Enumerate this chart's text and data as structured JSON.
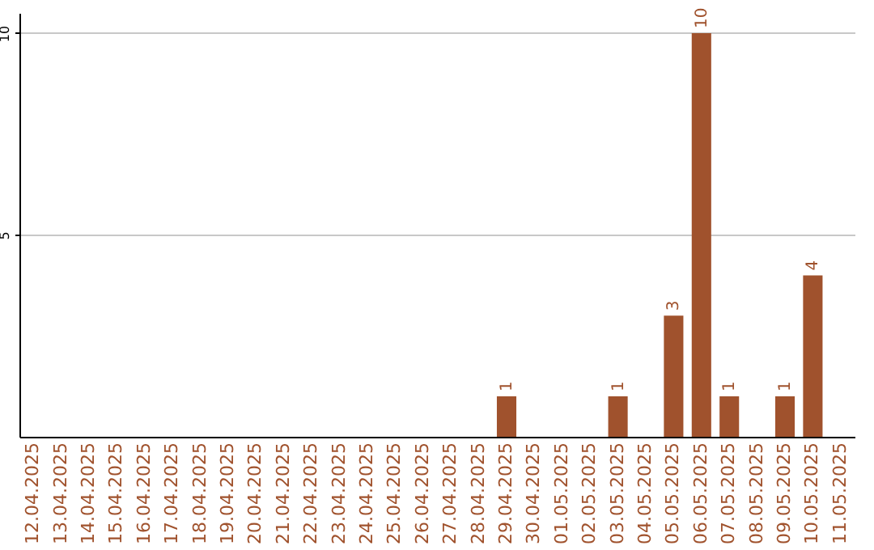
{
  "chart_data": {
    "type": "bar",
    "categories": [
      "12.04.2025",
      "13.04.2025",
      "14.04.2025",
      "15.04.2025",
      "16.04.2025",
      "17.04.2025",
      "18.04.2025",
      "19.04.2025",
      "20.04.2025",
      "21.04.2025",
      "22.04.2025",
      "23.04.2025",
      "24.04.2025",
      "25.04.2025",
      "26.04.2025",
      "27.04.2025",
      "28.04.2025",
      "29.04.2025",
      "30.04.2025",
      "01.05.2025",
      "02.05.2025",
      "03.05.2025",
      "04.05.2025",
      "05.05.2025",
      "06.05.2025",
      "07.05.2025",
      "08.05.2025",
      "09.05.2025",
      "10.05.2025",
      "11.05.2025"
    ],
    "values": [
      0,
      0,
      0,
      0,
      0,
      0,
      0,
      0,
      0,
      0,
      0,
      0,
      0,
      0,
      0,
      0,
      0,
      1,
      0,
      0,
      0,
      1,
      0,
      3,
      10,
      1,
      0,
      1,
      4,
      0
    ],
    "value_labels": [
      null,
      null,
      null,
      null,
      null,
      null,
      null,
      null,
      null,
      null,
      null,
      null,
      null,
      null,
      null,
      null,
      null,
      "1",
      null,
      null,
      null,
      "1",
      null,
      "3",
      "10",
      "1",
      null,
      "1",
      "4",
      null
    ],
    "color": "#a0522d",
    "ylim": [
      0,
      10.5
    ],
    "yticks": [
      5,
      10
    ],
    "grid": "y"
  }
}
